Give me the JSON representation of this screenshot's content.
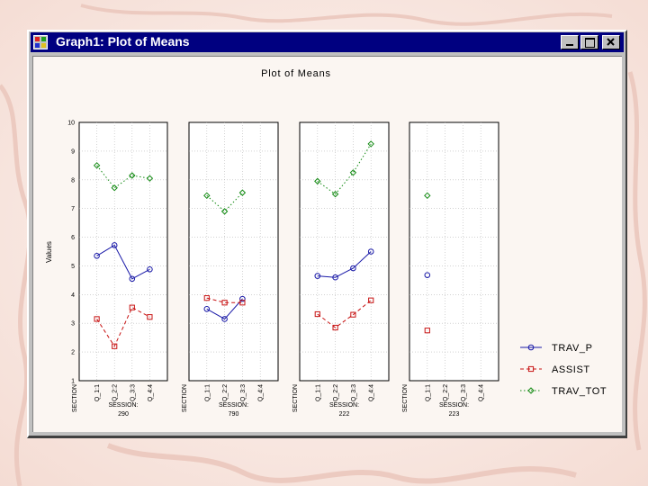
{
  "window": {
    "title": "Graph1: Plot of Means",
    "app_icon": "statistica-app-icon",
    "controls": [
      "minimize-icon",
      "maximize-icon",
      "close-icon"
    ]
  },
  "colors": {
    "title_bar": "#000080",
    "trav_p": "#1a1aa8",
    "assist": "#c81414",
    "trav_tot": "#128a12"
  },
  "chart_data": {
    "type": "line",
    "title": "Plot of Means",
    "ylabel": "Values",
    "ylim": [
      1,
      10
    ],
    "yticks": [
      "1",
      "2",
      "3",
      "4",
      "5",
      "6",
      "7",
      "8",
      "9",
      "10"
    ],
    "grid": true,
    "x_factor_label": "SECTION",
    "x": [
      "Q_1:1",
      "Q_2:2",
      "Q_3:3",
      "Q_4:4"
    ],
    "panels": [
      {
        "label": "SESSION:",
        "sublabel": "290"
      },
      {
        "label": "SESSION:",
        "sublabel": "790"
      },
      {
        "label": "SESSION:",
        "sublabel": "222"
      },
      {
        "label": "SESSION:",
        "sublabel": "223"
      }
    ],
    "series": [
      {
        "name": "TRAV_P",
        "marker": "circle",
        "line": "solid",
        "values": [
          [
            5.35,
            5.72,
            4.55,
            4.88
          ],
          [
            3.5,
            3.15,
            3.85,
            null
          ],
          [
            4.65,
            4.6,
            4.92,
            5.5
          ],
          [
            4.68,
            null,
            null,
            null
          ]
        ]
      },
      {
        "name": "ASSIST",
        "marker": "square",
        "line": "dashed",
        "values": [
          [
            3.15,
            2.2,
            3.55,
            3.22
          ],
          [
            3.88,
            3.72,
            3.72,
            null
          ],
          [
            3.32,
            2.85,
            3.3,
            3.8
          ],
          [
            2.75,
            null,
            null,
            null
          ]
        ]
      },
      {
        "name": "TRAV_TOT",
        "marker": "diamond",
        "line": "dotted",
        "values": [
          [
            8.5,
            7.72,
            8.15,
            8.05
          ],
          [
            7.45,
            6.9,
            7.55,
            null
          ],
          [
            7.95,
            7.5,
            8.25,
            9.25
          ],
          [
            7.45,
            null,
            null,
            null
          ]
        ]
      }
    ],
    "legend_position": "right"
  }
}
